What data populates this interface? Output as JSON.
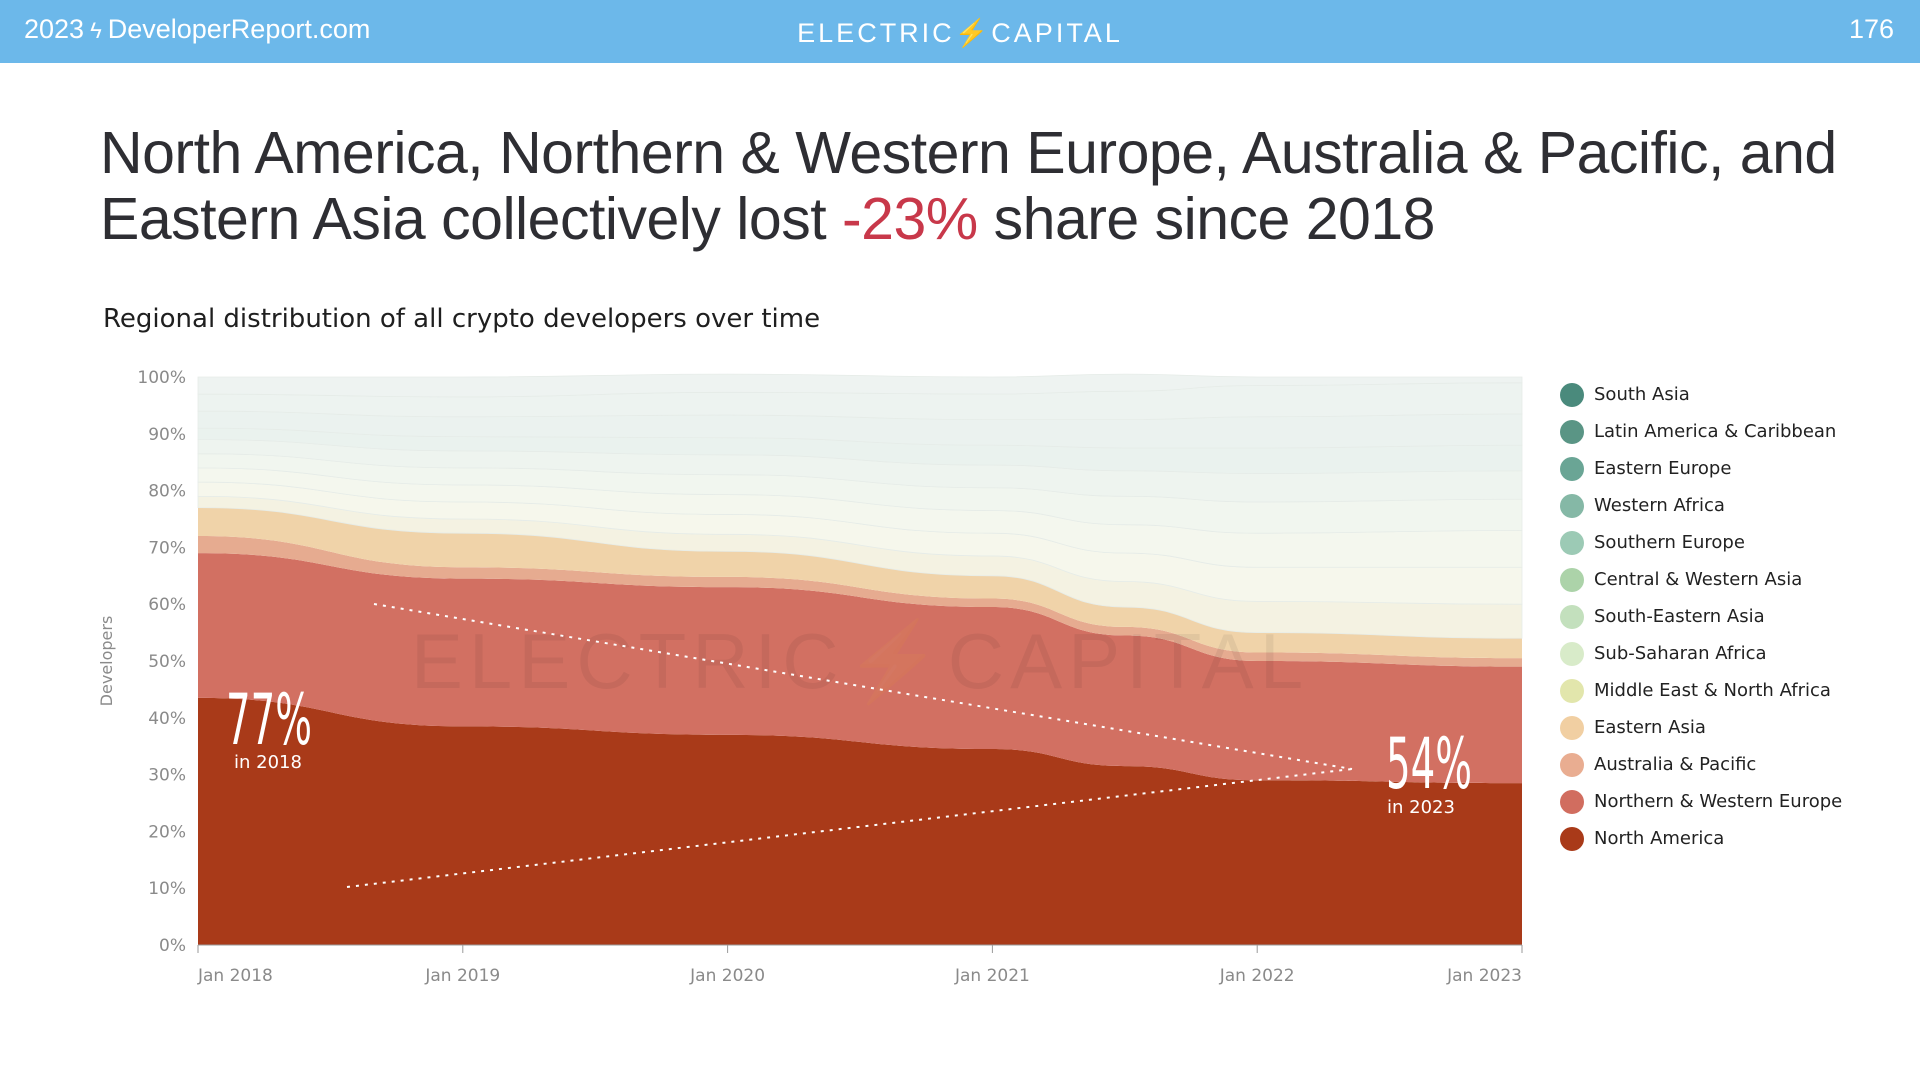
{
  "header": {
    "left_year": "2023",
    "left_site": "DeveloperReport.com",
    "brand": "ELECTRIC⚡CAPITAL",
    "page_number": "176",
    "background_color": "#6cb8ea"
  },
  "headline": {
    "before": "North America, Northern & Western Europe, Australia & Pacific, and Eastern Asia collectively lost ",
    "accent": "-23%",
    "after": " share since 2018",
    "accent_color": "#c8384a"
  },
  "subtitle": "Regional distribution of all crypto developers over time",
  "watermark": "ELECTRIC⚡CAPITAL",
  "chart_data": {
    "type": "area",
    "stacked": true,
    "ylabel": "Developers",
    "ylim": [
      0,
      100
    ],
    "y_ticks": [
      "0%",
      "10%",
      "20%",
      "30%",
      "40%",
      "50%",
      "60%",
      "70%",
      "80%",
      "90%",
      "100%"
    ],
    "x": [
      2018.0,
      2019.0,
      2020.0,
      2021.0,
      2021.5,
      2022.0,
      2023.0
    ],
    "x_ticks": [
      "Jan 2018",
      "Jan 2019",
      "Jan 2020",
      "Jan 2021",
      "Jan 2022",
      "Jan 2023"
    ],
    "grid": false,
    "legend_position": "right",
    "series": [
      {
        "name": "North America",
        "color": "#a93a19",
        "values": [
          43.5,
          38.5,
          37.0,
          34.5,
          31.5,
          29.0,
          28.5
        ]
      },
      {
        "name": "Northern & Western Europe",
        "color": "#d27062",
        "values": [
          25.5,
          26.0,
          26.0,
          25.0,
          23.0,
          21.0,
          20.5
        ]
      },
      {
        "name": "Australia & Pacific",
        "color": "#e6ab90",
        "values": [
          3.0,
          2.0,
          1.8,
          1.5,
          1.5,
          1.5,
          1.5
        ]
      },
      {
        "name": "Eastern Asia",
        "color": "#f0d3a9",
        "values": [
          5.0,
          6.0,
          4.5,
          4.0,
          3.5,
          3.5,
          3.5
        ]
      },
      {
        "name": "Middle East & North Africa",
        "color": "#f4f2e2",
        "values": [
          2.0,
          2.5,
          3.0,
          3.5,
          4.5,
          5.5,
          6.0
        ]
      },
      {
        "name": "Sub-Saharan Africa",
        "color": "#f6f7ec",
        "values": [
          2.5,
          3.0,
          3.5,
          4.0,
          5.0,
          6.0,
          6.5
        ]
      },
      {
        "name": "South-Eastern Asia",
        "color": "#f4f7ee",
        "values": [
          2.5,
          3.0,
          3.5,
          4.0,
          5.0,
          6.0,
          6.5
        ]
      },
      {
        "name": "Central & Western Asia",
        "color": "#f1f6ef",
        "values": [
          2.5,
          3.0,
          3.5,
          4.0,
          5.0,
          5.5,
          5.5
        ]
      },
      {
        "name": "Southern Europe",
        "color": "#eef4ef",
        "values": [
          2.5,
          3.0,
          3.5,
          4.0,
          4.5,
          5.0,
          5.0
        ]
      },
      {
        "name": "Western Africa",
        "color": "#eaf2ee",
        "values": [
          2.0,
          2.5,
          3.0,
          3.5,
          4.0,
          4.5,
          4.5
        ]
      },
      {
        "name": "Eastern Europe",
        "color": "#ebf2ef",
        "values": [
          3.0,
          3.5,
          4.0,
          4.5,
          5.0,
          5.5,
          5.5
        ]
      },
      {
        "name": "Latin America & Caribbean",
        "color": "#edf3f0",
        "values": [
          3.0,
          3.5,
          4.0,
          4.5,
          5.0,
          5.5,
          5.5
        ]
      },
      {
        "name": "South Asia",
        "color": "#eef3f1",
        "values": [
          3.0,
          3.5,
          3.2,
          3.0,
          3.0,
          1.5,
          1.0
        ]
      }
    ],
    "legend": [
      {
        "label": "South Asia",
        "color": "#4a8a7c"
      },
      {
        "label": "Latin America & Caribbean",
        "color": "#5a9585"
      },
      {
        "label": "Eastern Europe",
        "color": "#6aa595"
      },
      {
        "label": "Western Africa",
        "color": "#85b8a6"
      },
      {
        "label": "Southern Europe",
        "color": "#9ccab5"
      },
      {
        "label": "Central & Western Asia",
        "color": "#acd3a9"
      },
      {
        "label": "South-Eastern Asia",
        "color": "#c3e0bd"
      },
      {
        "label": "Sub-Saharan Africa",
        "color": "#d8ebc9"
      },
      {
        "label": "Middle East & North Africa",
        "color": "#e2e6ac"
      },
      {
        "label": "Eastern Asia",
        "color": "#f1cfa2"
      },
      {
        "label": "Australia & Pacific",
        "color": "#e9ad91"
      },
      {
        "label": "Northern & Western Europe",
        "color": "#d16d5f"
      },
      {
        "label": "North America",
        "color": "#a93a19"
      }
    ],
    "annotations": [
      {
        "value": "77%",
        "caption": "in 2018"
      },
      {
        "value": "54%",
        "caption": "in 2023"
      }
    ]
  }
}
